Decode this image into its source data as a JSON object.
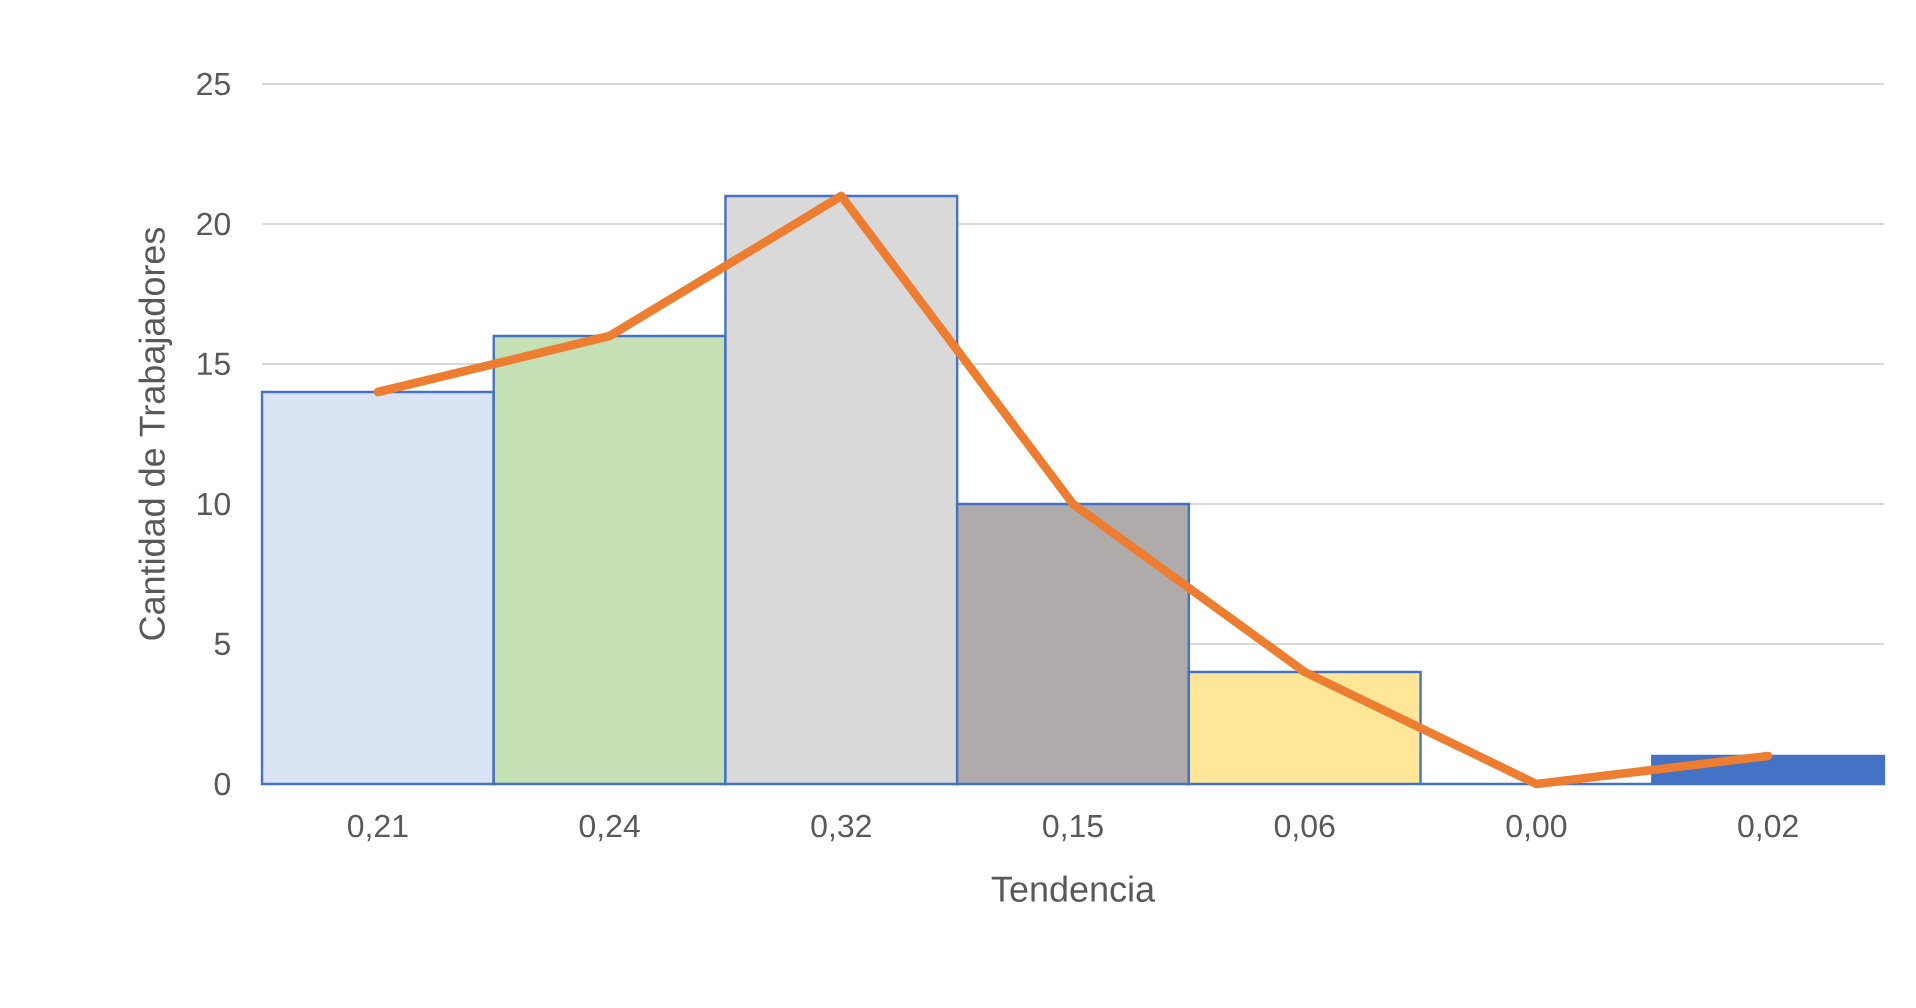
{
  "chart_data": {
    "type": "bar",
    "xlabel": "Tendencia",
    "ylabel": "Cantidad de Trabajadores",
    "categories": [
      "0,21",
      "0,24",
      "0,32",
      "0,15",
      "0,06",
      "0,00",
      "0,02"
    ],
    "series": [
      {
        "colors": [
          "#dae3f3",
          "#c5e0b4",
          "#d9d9d9",
          "#afabab",
          "#ffe699",
          "#4472c4",
          "#4472c4"
        ],
        "values": [
          14,
          16,
          21,
          10,
          4,
          0,
          1
        ]
      },
      {
        "type": "line",
        "color": "#ed7d31",
        "values": [
          14,
          16,
          21,
          10,
          4,
          0,
          1
        ]
      }
    ],
    "ylim": [
      0,
      25
    ],
    "yticks": [
      0,
      5,
      10,
      15,
      20,
      25
    ],
    "grid": "y"
  }
}
